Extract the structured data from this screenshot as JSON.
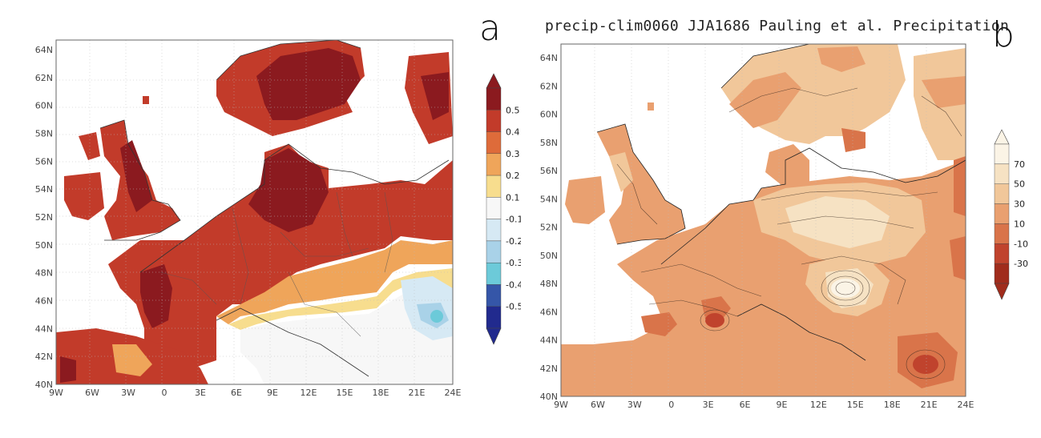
{
  "panels": [
    {
      "letter": "a",
      "title": "",
      "lat_ticks": [
        "64N",
        "62N",
        "60N",
        "58N",
        "56N",
        "54N",
        "52N",
        "50N",
        "48N",
        "46N",
        "44N",
        "42N",
        "40N"
      ],
      "lon_ticks": [
        "9W",
        "6W",
        "3W",
        "0",
        "3E",
        "6E",
        "9E",
        "12E",
        "15E",
        "18E",
        "21E",
        "24E"
      ],
      "colorbar": {
        "labels": [
          "0.5",
          "0.4",
          "0.3",
          "0.2",
          "0.1",
          "-0.1",
          "-0.2",
          "-0.3",
          "-0.4",
          "-0.5"
        ],
        "colors": [
          "#8b1a1f",
          "#c23b2a",
          "#de6b3a",
          "#efa55a",
          "#f7dd8e",
          "#f7f7f7",
          "#d6e9f4",
          "#a9d2e8",
          "#6ccad9",
          "#3556a8",
          "#212a8e"
        ]
      }
    },
    {
      "letter": "b",
      "title": "precip-clim0060 JJA1686 Pauling et al. Precipitation",
      "lat_ticks": [
        "64N",
        "62N",
        "60N",
        "58N",
        "56N",
        "54N",
        "52N",
        "50N",
        "48N",
        "46N",
        "44N",
        "42N",
        "40N"
      ],
      "lon_ticks": [
        "9W",
        "6W",
        "3W",
        "0",
        "3E",
        "6E",
        "9E",
        "12E",
        "15E",
        "18E",
        "21E",
        "24E"
      ],
      "colorbar": {
        "labels": [
          "70",
          "50",
          "30",
          "10",
          "-10",
          "-30"
        ],
        "colors": [
          "#fbf4e6",
          "#f6e2c3",
          "#f1c79a",
          "#e9a070",
          "#d9744a",
          "#c0432d",
          "#a02c1c"
        ]
      }
    }
  ]
}
